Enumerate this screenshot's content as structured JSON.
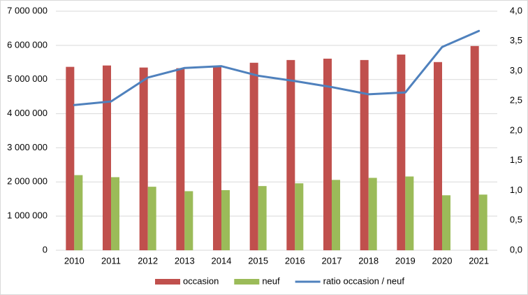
{
  "chart_data": {
    "type": "bar",
    "categories": [
      "2010",
      "2011",
      "2012",
      "2013",
      "2014",
      "2015",
      "2016",
      "2017",
      "2018",
      "2019",
      "2020",
      "2021"
    ],
    "series": [
      {
        "name": "occasion",
        "type": "bar",
        "color": "#c0504d",
        "values": [
          5370000,
          5410000,
          5350000,
          5330000,
          5390000,
          5490000,
          5570000,
          5610000,
          5570000,
          5730000,
          5510000,
          5980000
        ]
      },
      {
        "name": "neuf",
        "type": "bar",
        "color": "#9bbb59",
        "values": [
          2200000,
          2140000,
          1860000,
          1730000,
          1760000,
          1880000,
          1960000,
          2060000,
          2120000,
          2160000,
          1610000,
          1630000
        ]
      },
      {
        "name": "ratio occasion / neuf",
        "type": "line",
        "axis": "y2",
        "color": "#4f81bd",
        "values": [
          2.43,
          2.49,
          2.89,
          3.05,
          3.08,
          2.92,
          2.83,
          2.73,
          2.61,
          2.64,
          3.4,
          3.67
        ]
      }
    ],
    "ylim": [
      0,
      7000000
    ],
    "yticks": [
      0,
      {
        "value": 1000000,
        "label": "1 000 000"
      },
      {
        "value": 2000000,
        "label": "2 000 000"
      },
      {
        "value": 3000000,
        "label": "3 000 000"
      },
      {
        "value": 4000000,
        "label": "4 000 000"
      },
      {
        "value": 5000000,
        "label": "5 000 000"
      },
      {
        "value": 6000000,
        "label": "6 000 000"
      },
      {
        "value": 7000000,
        "label": "7 000 000"
      }
    ],
    "y2lim": [
      0,
      4
    ],
    "y2ticks": [
      {
        "value": 0,
        "label": "0,0"
      },
      {
        "value": 0.5,
        "label": "0,5"
      },
      {
        "value": 1,
        "label": "1,0"
      },
      {
        "value": 1.5,
        "label": "1,5"
      },
      {
        "value": 2,
        "label": "2,0"
      },
      {
        "value": 2.5,
        "label": "2,5"
      },
      {
        "value": 3,
        "label": "3,0"
      },
      {
        "value": 3.5,
        "label": "3,5"
      },
      {
        "value": 4,
        "label": "4,0"
      }
    ],
    "grid": true,
    "legend": "bottom"
  }
}
